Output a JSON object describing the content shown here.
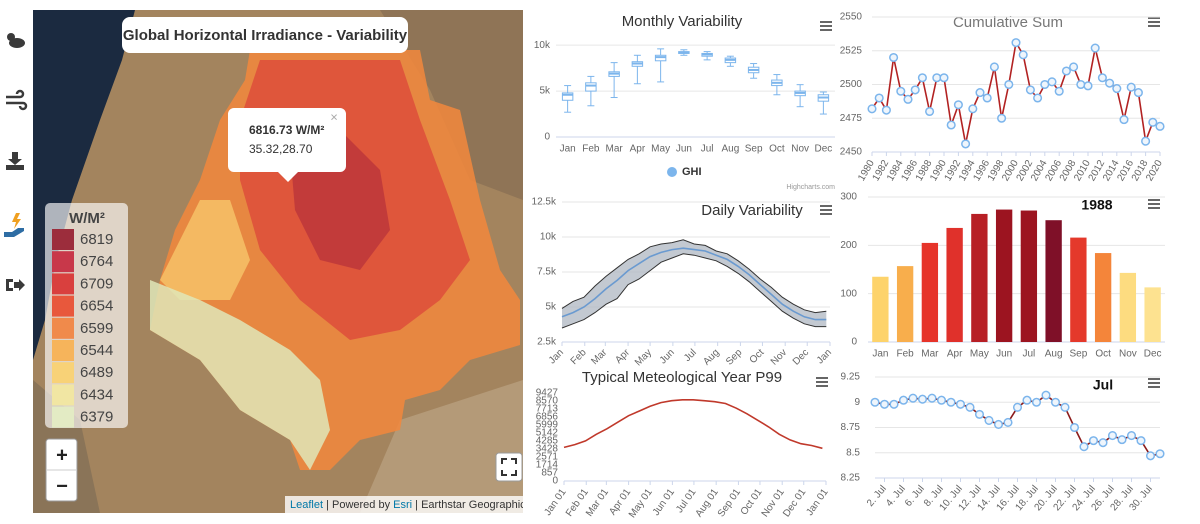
{
  "map": {
    "title": "Global Horizontal Irradiance - Variability",
    "popup": {
      "value": "6816.73 W/M²",
      "coords": "35.32,28.70",
      "close": "×"
    },
    "legend": {
      "title": "W/M²",
      "items": [
        {
          "value": 6819,
          "color": "#9c2d3c"
        },
        {
          "value": 6764,
          "color": "#c8384a"
        },
        {
          "value": 6709,
          "color": "#d9403e"
        },
        {
          "value": 6654,
          "color": "#e8583c"
        },
        {
          "value": 6599,
          "color": "#f08a4b"
        },
        {
          "value": 6544,
          "color": "#f6b45b"
        },
        {
          "value": 6489,
          "color": "#f8d277"
        },
        {
          "value": 6434,
          "color": "#f1e6a3"
        },
        {
          "value": 6379,
          "color": "#e3ebc4"
        }
      ]
    },
    "zoom_in": "+",
    "zoom_out": "−",
    "attribution": [
      "Leaflet",
      " | Powered by ",
      "Esri",
      " | Earthstar Geographics"
    ]
  },
  "chart_data": [
    {
      "type": "boxplot",
      "title": "Monthly Variability",
      "categories": [
        "Jan",
        "Feb",
        "Mar",
        "Apr",
        "May",
        "Jun",
        "Jul",
        "Aug",
        "Sep",
        "Oct",
        "Nov",
        "Dec"
      ],
      "series": [
        {
          "name": "GHI",
          "color": "#7cb5ec",
          "values": [
            [
              2700,
              4000,
              4600,
              4800,
              5600
            ],
            [
              3400,
              5000,
              5600,
              5900,
              6600
            ],
            [
              4300,
              6600,
              6900,
              7100,
              8100
            ],
            [
              5800,
              7700,
              8000,
              8200,
              8900
            ],
            [
              6000,
              8300,
              8700,
              8900,
              9600
            ],
            [
              8900,
              9100,
              9200,
              9300,
              9500
            ],
            [
              8400,
              8800,
              9000,
              9100,
              9300
            ],
            [
              7700,
              8100,
              8400,
              8600,
              8800
            ],
            [
              6400,
              7000,
              7300,
              7600,
              8000
            ],
            [
              4600,
              5600,
              5900,
              6200,
              6800
            ],
            [
              3300,
              4500,
              4800,
              5000,
              5700
            ],
            [
              2500,
              3900,
              4300,
              4600,
              4900
            ]
          ]
        }
      ],
      "ylim": [
        0,
        11000
      ],
      "yticks": [
        0,
        {
          "value": 5000,
          "label": "5k"
        },
        {
          "value": 10000,
          "label": "10k"
        }
      ],
      "grid": true,
      "credits": "Highcharts.com"
    },
    {
      "type": "line",
      "title": "Cumulative Sum",
      "x": [
        1980,
        1981,
        1982,
        1983,
        1984,
        1985,
        1986,
        1987,
        1988,
        1989,
        1990,
        1991,
        1992,
        1993,
        1994,
        1995,
        1996,
        1997,
        1998,
        1999,
        2000,
        2001,
        2002,
        2003,
        2004,
        2005,
        2006,
        2007,
        2008,
        2009,
        2010,
        2011,
        2012,
        2013,
        2014,
        2015,
        2016,
        2017,
        2018,
        2019,
        2020
      ],
      "series": [
        {
          "color": "#b22222",
          "values": [
            2482,
            2490,
            2481,
            2520,
            2495,
            2489,
            2496,
            2505,
            2480,
            2505,
            2505,
            2470,
            2485,
            2456,
            2482,
            2494,
            2490,
            2513,
            2475,
            2500,
            2531,
            2522,
            2496,
            2490,
            2500,
            2502,
            2495,
            2510,
            2513,
            2500,
            2499,
            2527,
            2505,
            2501,
            2497,
            2474,
            2498,
            2494,
            2458,
            2472,
            2469
          ]
        }
      ],
      "marker_color": "#7cb5ec",
      "xlim": [
        1980,
        2020
      ],
      "xticks": [
        1980,
        1982,
        1984,
        1986,
        1988,
        1990,
        1992,
        1994,
        1996,
        1998,
        2000,
        2002,
        2004,
        2006,
        2008,
        2010,
        2012,
        2014,
        2016,
        2018,
        2020
      ],
      "ylim": [
        2450,
        2550
      ],
      "yticks": [
        2450,
        2475,
        2500,
        2525,
        2550
      ],
      "grid": true
    },
    {
      "type": "line",
      "title": "Daily Variability",
      "x": [
        0,
        15,
        30,
        45,
        60,
        75,
        90,
        105,
        120,
        135,
        150,
        165,
        180,
        195,
        210,
        225,
        240,
        255,
        270,
        285,
        300,
        315,
        330,
        345,
        360
      ],
      "series": [
        {
          "color": "#6a9ad0",
          "values": [
            4300,
            4600,
            5000,
            5600,
            6300,
            6900,
            7600,
            8100,
            8600,
            8900,
            9100,
            9200,
            9100,
            9000,
            8700,
            8400,
            7900,
            7300,
            6600,
            5900,
            5200,
            4700,
            4300,
            4100,
            4100
          ]
        },
        {
          "color": "#333333",
          "values": [
            4900,
            5400,
            5700,
            6500,
            7200,
            7800,
            8400,
            8800,
            9300,
            9500,
            9600,
            9800,
            9500,
            9400,
            9000,
            8800,
            8300,
            7700,
            7000,
            6400,
            5700,
            5200,
            4800,
            4600,
            4700
          ]
        },
        {
          "color": "#333333",
          "values": [
            3500,
            3800,
            4100,
            4600,
            5200,
            5600,
            6600,
            7000,
            7600,
            8200,
            8500,
            8800,
            8700,
            8500,
            8300,
            7900,
            7400,
            6800,
            6100,
            5400,
            4700,
            4200,
            3800,
            3600,
            3600
          ]
        }
      ],
      "range_color": "#b4bcc6",
      "xlim": [
        0,
        365
      ],
      "xticks": [
        {
          "value": 0,
          "label": "Jan"
        },
        {
          "value": 31,
          "label": "Feb"
        },
        {
          "value": 59,
          "label": "Mar"
        },
        {
          "value": 90,
          "label": "Apr"
        },
        {
          "value": 120,
          "label": "May"
        },
        {
          "value": 151,
          "label": "Jun"
        },
        {
          "value": 181,
          "label": "Jul"
        },
        {
          "value": 212,
          "label": "Aug"
        },
        {
          "value": 243,
          "label": "Sep"
        },
        {
          "value": 273,
          "label": "Oct"
        },
        {
          "value": 304,
          "label": "Nov"
        },
        {
          "value": 334,
          "label": "Dec"
        },
        {
          "value": 365,
          "label": "Jan"
        }
      ],
      "ylim": [
        2500,
        12500
      ],
      "yticks": [
        {
          "value": 2500,
          "label": "2.5k"
        },
        {
          "value": 5000,
          "label": "5k"
        },
        {
          "value": 7500,
          "label": "7.5k"
        },
        {
          "value": 10000,
          "label": "10k"
        },
        {
          "value": 12500,
          "label": "12.5k"
        }
      ],
      "grid": true
    },
    {
      "type": "bar",
      "title": "1988",
      "categories": [
        "Jan",
        "Feb",
        "Mar",
        "Apr",
        "May",
        "Jun",
        "Jul",
        "Aug",
        "Sep",
        "Oct",
        "Nov",
        "Dec"
      ],
      "values": [
        135,
        157,
        205,
        236,
        265,
        274,
        272,
        252,
        216,
        184,
        143,
        113
      ],
      "colors": [
        "#fdd36b",
        "#f8ae4c",
        "#e6342a",
        "#e0312b",
        "#b71f25",
        "#9c1420",
        "#9c1420",
        "#7f1028",
        "#e4392b",
        "#f4853a",
        "#fddc80",
        "#fde290"
      ],
      "ylim": [
        0,
        300
      ],
      "yticks": [
        0,
        100,
        200,
        300
      ],
      "grid": true
    },
    {
      "type": "line",
      "title": "Typical Meteological Year P99",
      "x": [
        0,
        15,
        30,
        45,
        60,
        75,
        90,
        105,
        120,
        135,
        150,
        165,
        180,
        195,
        210,
        225,
        240,
        255,
        270,
        285,
        300,
        315,
        330,
        345,
        360
      ],
      "series": [
        {
          "color": "#c0392b",
          "values": [
            3600,
            3900,
            4300,
            5000,
            5600,
            6300,
            7000,
            7500,
            8000,
            8400,
            8600,
            8700,
            8700,
            8600,
            8500,
            8300,
            7800,
            7200,
            6500,
            5800,
            5000,
            4400,
            4000,
            3800,
            3500
          ]
        }
      ],
      "xlim": [
        0,
        365
      ],
      "xticks": [
        {
          "value": 0,
          "label": "Jan 01"
        },
        {
          "value": 31,
          "label": "Feb 01"
        },
        {
          "value": 59,
          "label": "Mar 01"
        },
        {
          "value": 90,
          "label": "Apr 01"
        },
        {
          "value": 120,
          "label": "May 01"
        },
        {
          "value": 151,
          "label": "Jun 01"
        },
        {
          "value": 181,
          "label": "Jul 01"
        },
        {
          "value": 212,
          "label": "Aug 01"
        },
        {
          "value": 243,
          "label": "Sep 01"
        },
        {
          "value": 273,
          "label": "Oct 01"
        },
        {
          "value": 304,
          "label": "Nov 01"
        },
        {
          "value": 334,
          "label": "Dec 01"
        },
        {
          "value": 365,
          "label": "Jan 01"
        }
      ],
      "ylim": [
        0,
        9427
      ],
      "yticks": [
        0,
        857,
        1714,
        2571,
        3428,
        4285,
        5142,
        5999,
        6856,
        7713,
        8570,
        9427
      ],
      "grid": false
    },
    {
      "type": "line",
      "title": "Jul",
      "x": [
        1,
        2,
        3,
        4,
        5,
        6,
        7,
        8,
        9,
        10,
        11,
        12,
        13,
        14,
        15,
        16,
        17,
        18,
        19,
        20,
        21,
        22,
        23,
        24,
        25,
        26,
        27,
        28,
        29,
        30,
        31
      ],
      "series": [
        {
          "color": "#8b1a1a",
          "values": [
            9.0,
            8.98,
            8.98,
            9.02,
            9.04,
            9.03,
            9.04,
            9.02,
            9.0,
            8.98,
            8.95,
            8.88,
            8.82,
            8.78,
            8.8,
            8.95,
            9.02,
            9.0,
            9.07,
            9.0,
            8.95,
            8.75,
            8.56,
            8.62,
            8.6,
            8.67,
            8.63,
            8.67,
            8.62,
            8.47,
            8.49
          ]
        }
      ],
      "marker_color": "#7cb5ec",
      "xlim": [
        1,
        31
      ],
      "xticks": [
        {
          "value": 2,
          "label": "2. Jul"
        },
        {
          "value": 4,
          "label": "4. Jul"
        },
        {
          "value": 6,
          "label": "6. Jul"
        },
        {
          "value": 8,
          "label": "8. Jul"
        },
        {
          "value": 10,
          "label": "10. Jul"
        },
        {
          "value": 12,
          "label": "12. Jul"
        },
        {
          "value": 14,
          "label": "14. Jul"
        },
        {
          "value": 16,
          "label": "16. Jul"
        },
        {
          "value": 18,
          "label": "18. Jul"
        },
        {
          "value": 20,
          "label": "20. Jul"
        },
        {
          "value": 22,
          "label": "22. Jul"
        },
        {
          "value": 24,
          "label": "24. Jul"
        },
        {
          "value": 26,
          "label": "26. Jul"
        },
        {
          "value": 28,
          "label": "28. Jul"
        },
        {
          "value": 30,
          "label": "30. Jul"
        }
      ],
      "ylim": [
        8.25,
        9.25
      ],
      "yticks": [
        8.25,
        8.5,
        8.75,
        9,
        9.25
      ],
      "grid": true
    }
  ]
}
